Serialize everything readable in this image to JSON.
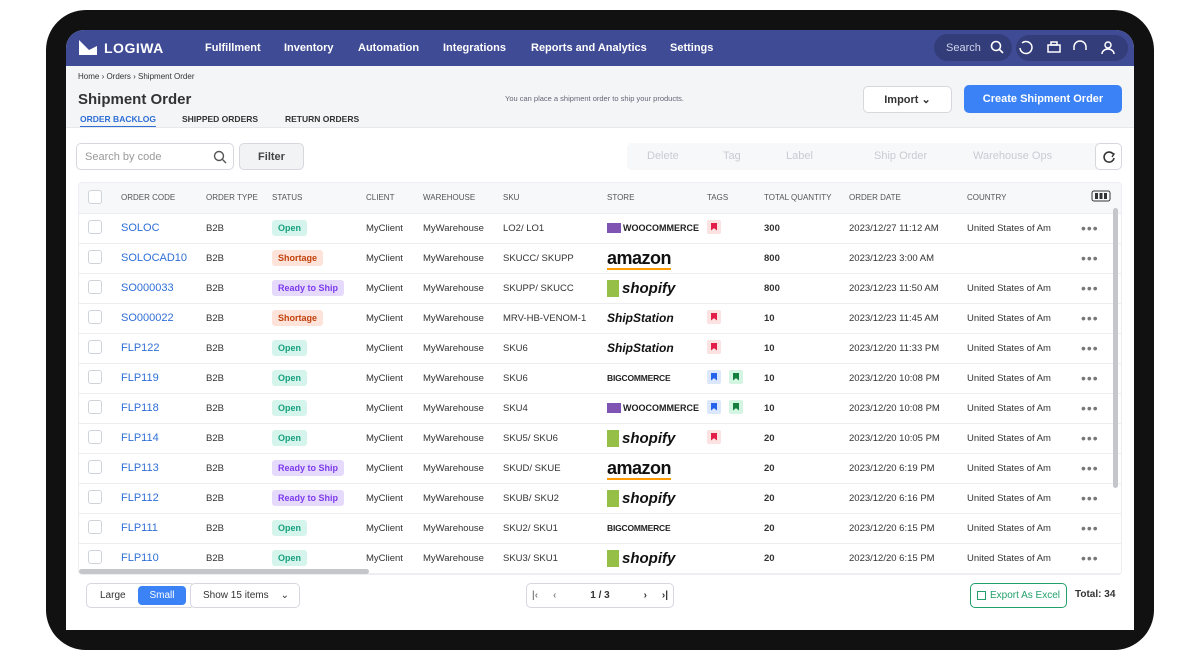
{
  "nav": {
    "brand": "LOGIWA",
    "items": [
      "Fulfillment",
      "Inventory",
      "Automation",
      "Integrations",
      "Reports and Analytics",
      "Settings"
    ],
    "search": "Search"
  },
  "breadcrumb": [
    "Home",
    "Orders",
    "Shipment Order"
  ],
  "header": {
    "title": "Shipment Order",
    "hint": "You can place a shipment order to ship your products.",
    "import": "Import",
    "create": "Create Shipment Order"
  },
  "tabs": [
    "ORDER BACKLOG",
    "SHIPPED ORDERS",
    "RETURN ORDERS"
  ],
  "toolbar": {
    "search": "Search by code",
    "filter": "Filter",
    "actions": [
      "Delete",
      "Tag",
      "Label",
      "Ship Order",
      "Warehouse Ops"
    ]
  },
  "table": {
    "columns": [
      "ORDER CODE",
      "ORDER TYPE",
      "STATUS",
      "CLIENT",
      "WAREHOUSE",
      "SKU",
      "STORE",
      "TAGS",
      "TOTAL QUANTITY",
      "ORDER DATE",
      "COUNTRY"
    ],
    "rows": [
      {
        "code": "SOLOC",
        "type": "B2B",
        "status": "Open",
        "client": "MyClient",
        "warehouse": "MyWarehouse",
        "sku": "LO2/ LO1",
        "store": "WOOCOMMERCE",
        "tags": [
          "red"
        ],
        "quantity": "300",
        "date": "2023/12/27 11:12 AM",
        "country": "United States of Am"
      },
      {
        "code": "SOLOCAD10",
        "type": "B2B",
        "status": "Shortage",
        "client": "MyClient",
        "warehouse": "MyWarehouse",
        "sku": "SKUCC/ SKUPP",
        "store": "amazon",
        "tags": [],
        "quantity": "800",
        "date": "2023/12/23 3:00 AM",
        "country": null
      },
      {
        "code": "SO000033",
        "type": "B2B",
        "status": "Ready to Ship",
        "client": "MyClient",
        "warehouse": "MyWarehouse",
        "sku": "SKUPP/ SKUCC",
        "store": "shopify",
        "tags": [],
        "quantity": "800",
        "date": "2023/12/23 11:50 AM",
        "country": "United States of Am"
      },
      {
        "code": "SO000022",
        "type": "B2B",
        "status": "Shortage",
        "client": "MyClient",
        "warehouse": "MyWarehouse",
        "sku": "MRV-HB-VENOM-1",
        "store": "ShipStation",
        "tags": [
          "red"
        ],
        "quantity": "10",
        "date": "2023/12/23 11:45 AM",
        "country": "United States of Am"
      },
      {
        "code": "FLP122",
        "type": "B2B",
        "status": "Open",
        "client": "MyClient",
        "warehouse": "MyWarehouse",
        "sku": "SKU6",
        "store": "ShipStation",
        "tags": [
          "red"
        ],
        "quantity": "10",
        "date": "2023/12/20 11:33 PM",
        "country": "United States of Am"
      },
      {
        "code": "FLP119",
        "type": "B2B",
        "status": "Open",
        "client": "MyClient",
        "warehouse": "MyWarehouse",
        "sku": "SKU6",
        "store": "BIGCOMMERCE",
        "tags": [
          "blue",
          "green"
        ],
        "quantity": "10",
        "date": "2023/12/20 10:08 PM",
        "country": "United States of Am"
      },
      {
        "code": "FLP118",
        "type": "B2B",
        "status": "Open",
        "client": "MyClient",
        "warehouse": "MyWarehouse",
        "sku": "SKU4",
        "store": "WOOCOMMERCE",
        "tags": [
          "blue",
          "green"
        ],
        "quantity": "10",
        "date": "2023/12/20 10:08 PM",
        "country": "United States of Am"
      },
      {
        "code": "FLP114",
        "type": "B2B",
        "status": "Open",
        "client": "MyClient",
        "warehouse": "MyWarehouse",
        "sku": "SKU5/ SKU6",
        "store": "shopify",
        "tags": [
          "red"
        ],
        "quantity": "20",
        "date": "2023/12/20 10:05 PM",
        "country": "United States of Am"
      },
      {
        "code": "FLP113",
        "type": "B2B",
        "status": "Ready to Ship",
        "client": "MyClient",
        "warehouse": "MyWarehouse",
        "sku": "SKUD/ SKUE",
        "store": "amazon",
        "tags": [],
        "quantity": "20",
        "date": "2023/12/20 6:19 PM",
        "country": "United States of Am"
      },
      {
        "code": "FLP112",
        "type": "B2B",
        "status": "Ready to Ship",
        "client": "MyClient",
        "warehouse": "MyWarehouse",
        "sku": "SKUB/ SKU2",
        "store": "shopify",
        "tags": [],
        "quantity": "20",
        "date": "2023/12/20 6:16 PM",
        "country": "United States of Am"
      },
      {
        "code": "FLP111",
        "type": "B2B",
        "status": "Open",
        "client": "MyClient",
        "warehouse": "MyWarehouse",
        "sku": "SKU2/ SKU1",
        "store": "BIGCOMMERCE",
        "tags": [],
        "quantity": "20",
        "date": "2023/12/20 6:15 PM",
        "country": "United States of Am"
      },
      {
        "code": "FLP110",
        "type": "B2B",
        "status": "Open",
        "client": "MyClient",
        "warehouse": "MyWarehouse",
        "sku": "SKU3/ SKU1",
        "store": "shopify",
        "tags": [],
        "quantity": "20",
        "date": "2023/12/20 6:15 PM",
        "country": "United States of Am"
      }
    ]
  },
  "footer": {
    "sizes": [
      "Large",
      "Small"
    ],
    "show": "Show 15 items",
    "page": "1 / 3",
    "export": "Export As Excel",
    "total": "Total: 34"
  }
}
